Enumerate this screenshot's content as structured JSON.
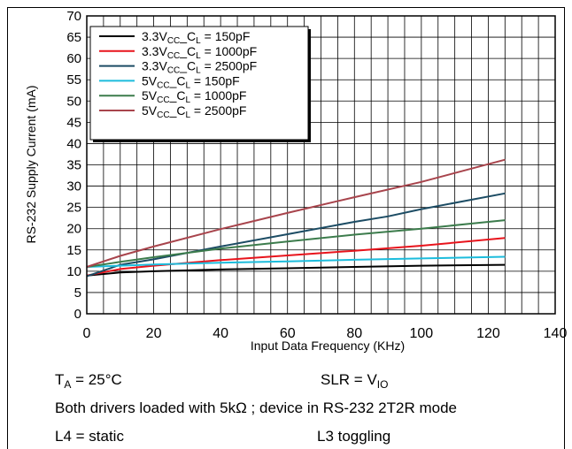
{
  "chart_data": {
    "type": "line",
    "xlabel": "Input Data Frequency (KHz)",
    "ylabel": "RS-232 Supply Current (mA)",
    "xlim": [
      0,
      140
    ],
    "ylim": [
      0,
      70
    ],
    "xticks": [
      0,
      20,
      40,
      60,
      80,
      100,
      120,
      140
    ],
    "yticks": [
      0,
      5,
      10,
      15,
      20,
      25,
      30,
      35,
      40,
      45,
      50,
      55,
      60,
      65,
      70
    ],
    "grid": true,
    "legend_position": "top-left",
    "series": [
      {
        "name": "3.3V",
        "sub": "CC",
        "mid": "_C",
        "sub2": "L",
        "tail": " = 150pF",
        "color": "#000000",
        "x": [
          0,
          10,
          20,
          40,
          60,
          80,
          100,
          125
        ],
        "y": [
          9.0,
          9.7,
          10.0,
          10.4,
          10.7,
          11.0,
          11.3,
          11.5
        ]
      },
      {
        "name": "3.3V",
        "sub": "CC",
        "mid": "_C",
        "sub2": "L",
        "tail": " = 1000pF",
        "color": "#e8141c",
        "x": [
          0,
          10,
          20,
          40,
          60,
          80,
          100,
          125
        ],
        "y": [
          9.0,
          10.5,
          11.3,
          12.6,
          13.7,
          14.8,
          16.0,
          17.8
        ]
      },
      {
        "name": "3.3V",
        "sub": "CC",
        "mid": "_C",
        "sub2": "L",
        "tail": " = 2500pF",
        "color": "#1c4c64",
        "x": [
          0,
          10,
          20,
          40,
          60,
          80,
          90,
          100,
          125
        ],
        "y": [
          8.8,
          11.5,
          12.8,
          15.8,
          18.7,
          21.6,
          22.9,
          24.6,
          28.3
        ]
      },
      {
        "name": "5V",
        "sub": "CC",
        "mid": "_C",
        "sub2": "L",
        "tail": " = 150pF",
        "color": "#1cbcdc",
        "x": [
          0,
          10,
          20,
          40,
          60,
          80,
          100,
          125
        ],
        "y": [
          11.0,
          11.3,
          11.6,
          12.0,
          12.3,
          12.7,
          13.0,
          13.4
        ]
      },
      {
        "name": "5V",
        "sub": "CC",
        "mid": "_C",
        "sub2": "L",
        "tail": " = 1000pF",
        "color": "#3c7c4c",
        "x": [
          0,
          10,
          20,
          40,
          60,
          80,
          100,
          125
        ],
        "y": [
          11.0,
          12.2,
          13.3,
          15.3,
          17.0,
          18.6,
          20.0,
          22.0
        ]
      },
      {
        "name": "5V",
        "sub": "CC",
        "mid": "_C",
        "sub2": "L",
        "tail": " = 2500pF",
        "color": "#a8444c",
        "x": [
          0,
          10,
          20,
          40,
          60,
          80,
          100,
          125
        ],
        "y": [
          11.0,
          13.6,
          15.8,
          19.9,
          23.7,
          27.4,
          31.0,
          36.2
        ]
      }
    ]
  },
  "notes": {
    "ta_main": "T",
    "ta_sub": "A",
    "ta_rest": " = 25°C",
    "slr_main": "SLR = V",
    "slr_sub": "IO",
    "drivers": "Both drivers loaded with 5kΩ ; device in RS-232 2T2R mode",
    "l4": "L4 = static",
    "l3": "L3 toggling"
  }
}
